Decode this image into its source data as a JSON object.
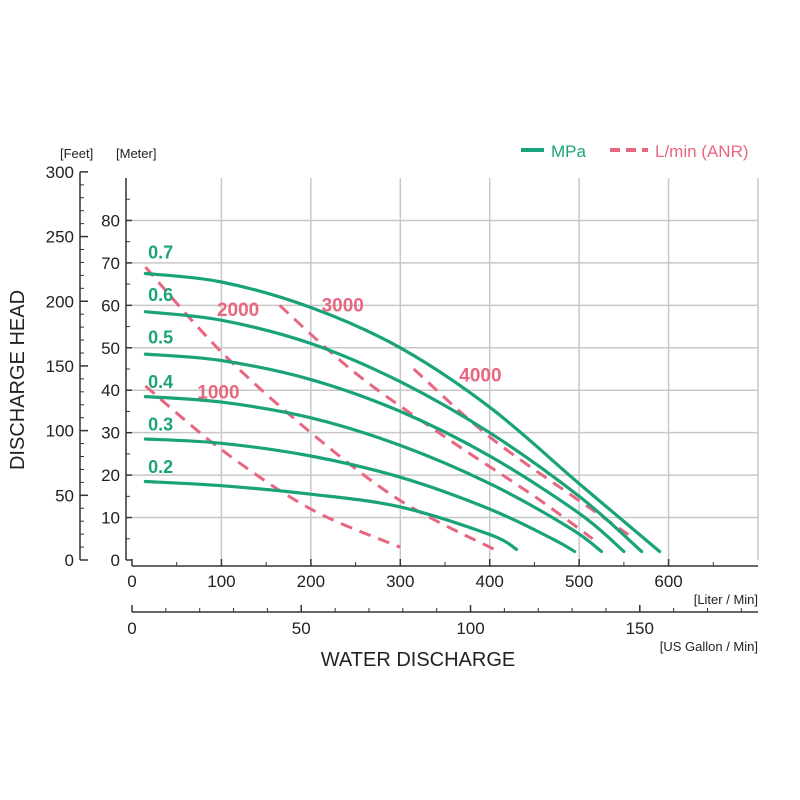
{
  "chart_data": {
    "type": "line",
    "xlabel": "WATER DISCHARGE",
    "ylabel": "DISCHARGE HEAD",
    "x_unit_primary": "[Liter / Min]",
    "x_unit_secondary": "[US Gallon / Min]",
    "y_unit_primary": "[Meter]",
    "y_unit_secondary": "[Feet]",
    "xlim": [
      0,
      700
    ],
    "ylim": [
      0,
      90
    ],
    "x_ticks": [
      0,
      100,
      200,
      300,
      400,
      500,
      600
    ],
    "x_tick_labels": [
      "0",
      "100",
      "200",
      "300",
      "400",
      "500",
      "600"
    ],
    "x2_ticks": [
      0,
      50,
      100,
      150
    ],
    "x2_tick_labels": [
      "0",
      "50",
      "100",
      "150"
    ],
    "y_ticks": [
      0,
      10,
      20,
      30,
      40,
      50,
      60,
      70,
      80
    ],
    "y_tick_labels": [
      "0",
      "10",
      "20",
      "30",
      "40",
      "50",
      "60",
      "70",
      "80"
    ],
    "y2_ticks": [
      0,
      50,
      100,
      150,
      200,
      250,
      300
    ],
    "y2_tick_labels": [
      "0",
      "50",
      "100",
      "150",
      "200",
      "250",
      "300"
    ],
    "grid": true,
    "legend_position": "top-right",
    "legend": [
      {
        "label": "MPa",
        "style": "solid",
        "color": "#1aa37a"
      },
      {
        "label": "L/min (ANR)",
        "style": "dashed",
        "color": "#e8667f"
      }
    ],
    "colors": {
      "mpa": "#1aa37a",
      "lmin": "#e8667f",
      "grid": "#c8c8c8",
      "axis": "#333333"
    },
    "mpa_series": [
      {
        "name": "0.7",
        "x": [
          15,
          100,
          200,
          300,
          400,
          500,
          590
        ],
        "y": [
          67.5,
          65.5,
          59.5,
          50,
          36,
          18,
          2
        ]
      },
      {
        "name": "0.6",
        "x": [
          15,
          100,
          200,
          300,
          400,
          500,
          570
        ],
        "y": [
          58.5,
          56.5,
          51,
          42,
          30,
          15,
          2
        ]
      },
      {
        "name": "0.5",
        "x": [
          15,
          100,
          200,
          300,
          400,
          500,
          550
        ],
        "y": [
          48.5,
          47,
          42.5,
          35,
          24.5,
          11,
          2
        ]
      },
      {
        "name": "0.4",
        "x": [
          15,
          100,
          200,
          300,
          400,
          490,
          525
        ],
        "y": [
          38.5,
          37.2,
          33.5,
          27,
          18,
          7.5,
          2
        ]
      },
      {
        "name": "0.3",
        "x": [
          15,
          100,
          200,
          300,
          400,
          470,
          495
        ],
        "y": [
          28.5,
          27.5,
          24.5,
          19.5,
          12,
          5,
          2
        ]
      },
      {
        "name": "0.2",
        "x": [
          15,
          100,
          200,
          300,
          400,
          430
        ],
        "y": [
          18.5,
          17.5,
          15.5,
          12.5,
          6,
          2.5
        ]
      }
    ],
    "lmin_series": [
      {
        "name": "1000",
        "x": [
          15,
          100,
          200,
          300
        ],
        "y": [
          41,
          26,
          12,
          3
        ]
      },
      {
        "name": "2000",
        "x": [
          15,
          100,
          200,
          300,
          405
        ],
        "y": [
          69,
          49,
          30,
          14,
          2.5
        ]
      },
      {
        "name": "3000",
        "x": [
          165,
          250,
          350,
          450,
          515
        ],
        "y": [
          60,
          44,
          29,
          15,
          5
        ]
      },
      {
        "name": "4000",
        "x": [
          315,
          400,
          500,
          555
        ],
        "y": [
          45,
          29,
          14,
          6
        ]
      }
    ],
    "mpa_labels": [
      {
        "text": "0.7",
        "x": 18,
        "y": 71
      },
      {
        "text": "0.6",
        "x": 18,
        "y": 61
      },
      {
        "text": "0.5",
        "x": 18,
        "y": 51
      },
      {
        "text": "0.4",
        "x": 18,
        "y": 40.5
      },
      {
        "text": "0.3",
        "x": 18,
        "y": 30.5
      },
      {
        "text": "0.2",
        "x": 18,
        "y": 20.5
      }
    ],
    "lmin_labels": [
      {
        "text": "1000",
        "x": 73,
        "y": 38
      },
      {
        "text": "2000",
        "x": 95,
        "y": 57.5
      },
      {
        "text": "3000",
        "x": 212,
        "y": 58.5
      },
      {
        "text": "4000",
        "x": 366,
        "y": 42
      }
    ]
  }
}
